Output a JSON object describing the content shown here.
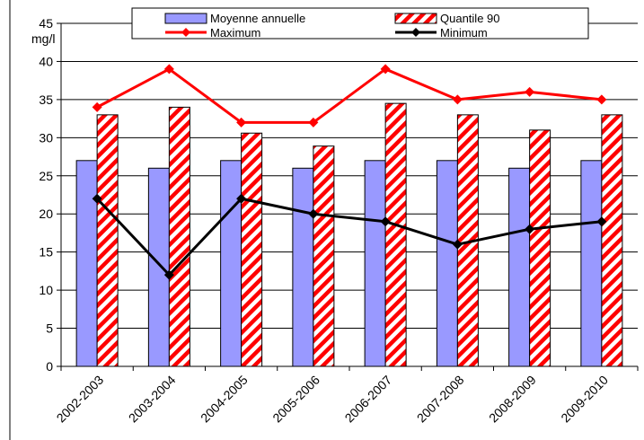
{
  "chart_data": {
    "type": "bar",
    "ylabel": "mg/l",
    "ylim": [
      0,
      45
    ],
    "yticks": [
      0,
      5,
      10,
      15,
      20,
      25,
      30,
      35,
      40,
      45
    ],
    "grid": true,
    "legend_position": "top",
    "categories": [
      "2002-2003",
      "2003-2004",
      "2004-2005",
      "2005-2006",
      "2006-2007",
      "2007-2008",
      "2008-2009",
      "2009-2010"
    ],
    "series": [
      {
        "name": "Moyenne annuelle",
        "kind": "bar",
        "color": "#9999ff",
        "values": [
          27,
          26,
          27,
          26,
          27,
          27,
          26,
          27
        ]
      },
      {
        "name": "Quantile 90",
        "kind": "bar",
        "pattern": "red-white diagonal hatch",
        "color": "#ff0000",
        "values": [
          33,
          34,
          30.6,
          28.9,
          34.5,
          33,
          31,
          33
        ]
      },
      {
        "name": "Maximum",
        "kind": "line",
        "marker": "diamond",
        "color": "#ff0000",
        "values": [
          34,
          39,
          32,
          32,
          39,
          35,
          36,
          35
        ]
      },
      {
        "name": "Minimum",
        "kind": "line",
        "marker": "diamond",
        "color": "#000000",
        "values": [
          22,
          12,
          22,
          20,
          19,
          16,
          18,
          19
        ]
      }
    ]
  }
}
